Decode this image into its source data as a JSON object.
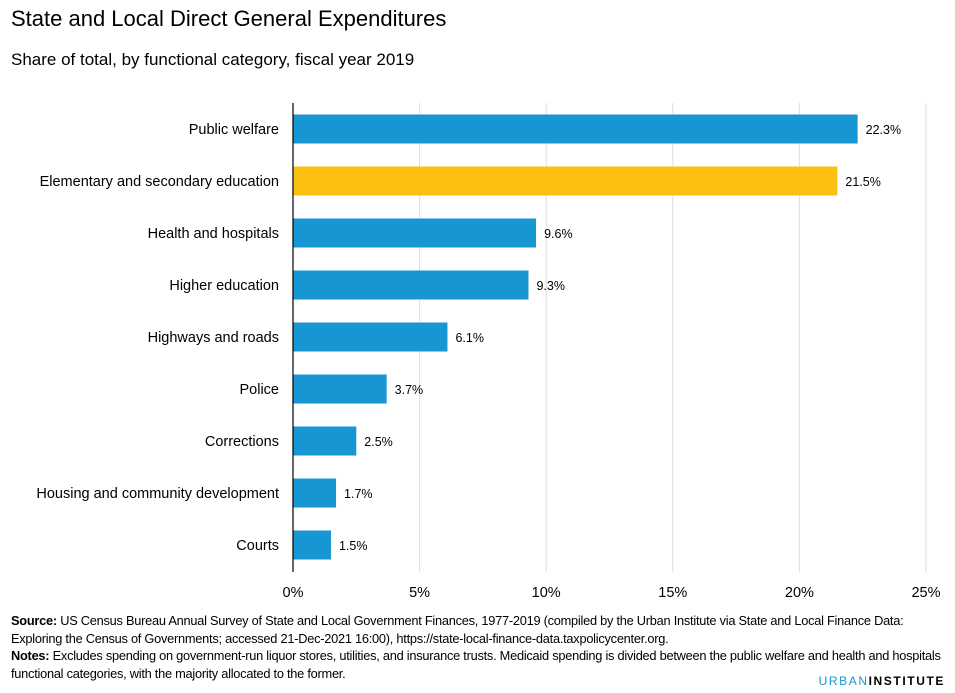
{
  "chart_data": {
    "type": "bar",
    "orientation": "horizontal",
    "title": "State and Local Direct General Expenditures",
    "subtitle": "Share of total, by functional category, fiscal year 2019",
    "categories": [
      "Public welfare",
      "Elementary and secondary education",
      "Health and hospitals",
      "Higher education",
      "Highways and roads",
      "Police",
      "Corrections",
      "Housing and community development",
      "Courts"
    ],
    "values": [
      22.3,
      21.5,
      9.6,
      9.3,
      6.1,
      3.7,
      2.5,
      1.7,
      1.5
    ],
    "value_labels": [
      "22.3%",
      "21.5%",
      "9.6%",
      "9.3%",
      "6.1%",
      "3.7%",
      "2.5%",
      "1.7%",
      "1.5%"
    ],
    "highlight_index": 1,
    "xlim": [
      0,
      25
    ],
    "xticks": [
      0,
      5,
      10,
      15,
      20,
      25
    ],
    "xtick_labels": [
      "0%",
      "5%",
      "10%",
      "15%",
      "20%",
      "25%"
    ],
    "xlabel": "",
    "ylabel": "",
    "grid": true,
    "colors": {
      "bar": "#1696d2",
      "highlight": "#fdbf11",
      "grid": "#dedddd",
      "axis": "#000000"
    }
  },
  "footer": {
    "source_label": "Source:",
    "source_text": " US Census Bureau Annual Survey of State and Local Government Finances, 1977-2019 (compiled by the Urban Institute via State and Local Finance Data: Exploring the Census of Governments; accessed 21-Dec-2021 16:00), https://state-local-finance-data.taxpolicycenter.org.",
    "notes_label": "Notes:",
    "notes_text": " Excludes spending on government-run liquor stores, utilities, and insurance trusts. Medicaid spending is divided between the public welfare and health and hospitals functional categories, with the majority allocated to the former."
  },
  "logo": {
    "part1": "URBAN",
    "part2": "INSTITUTE"
  }
}
